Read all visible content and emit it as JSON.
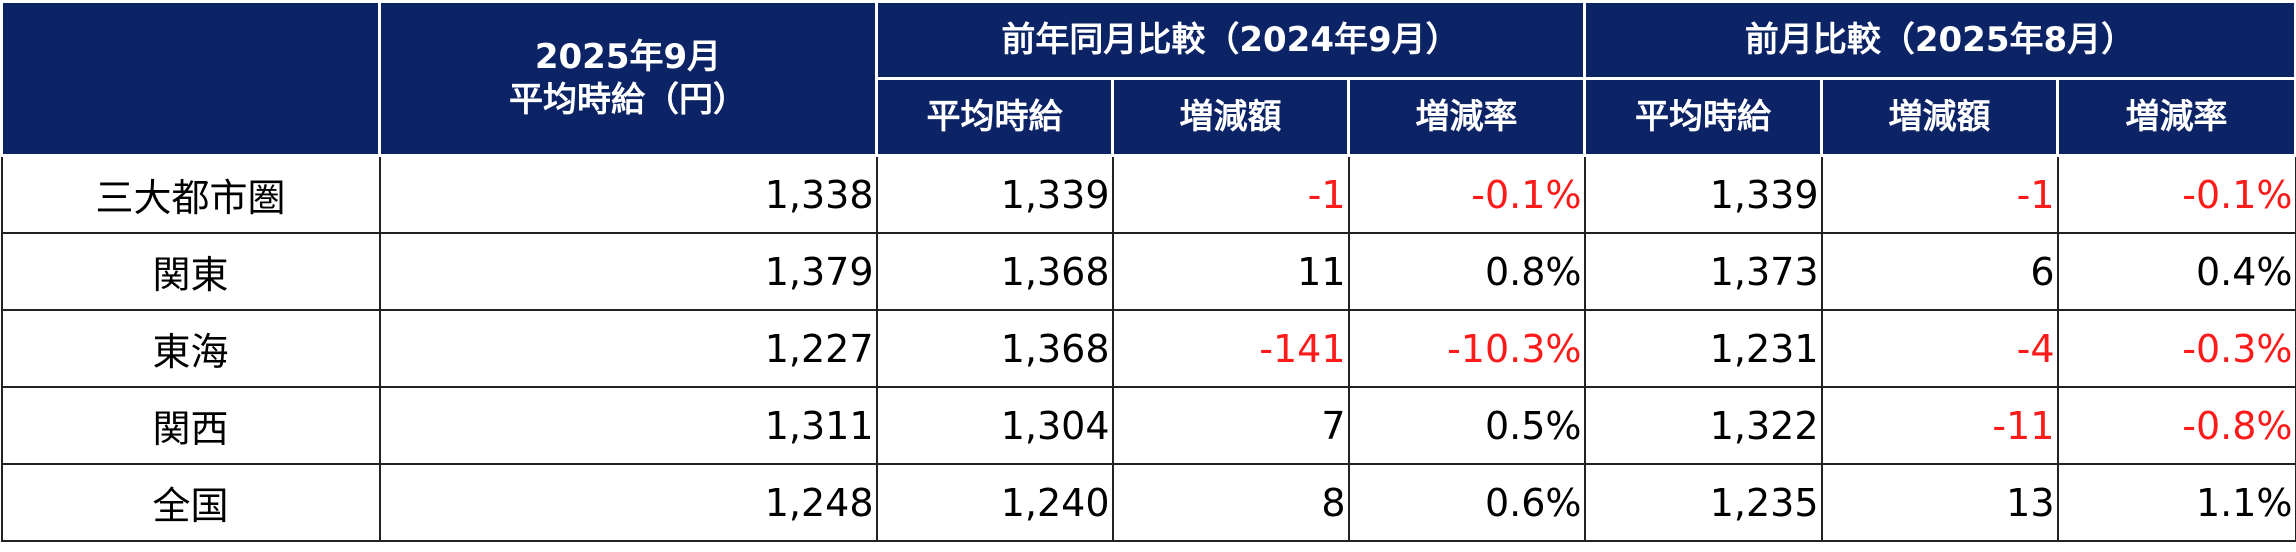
{
  "header": {
    "period": "2025年9月",
    "period_sub": "平均時給（円）",
    "yoy": "前年同月比較（2024年9月）",
    "mom": "前月比較（2025年8月）",
    "columns": [
      "平均時給",
      "増減額",
      "増減率",
      "平均時給",
      "増減額",
      "増減率"
    ]
  },
  "table": {
    "rows": [
      [
        "三大都市圏",
        "1,338",
        "1,339",
        "-1",
        "-0.1%",
        "1,339",
        "-1",
        "-0.1%"
      ],
      [
        "関東",
        "1,379",
        "1,368",
        "11",
        "0.8%",
        "1,373",
        "6",
        "0.4%"
      ],
      [
        "東海",
        "1,227",
        "1,368",
        "-141",
        "-10.3%",
        "1,231",
        "-4",
        "-0.3%"
      ],
      [
        "関西",
        "1,311",
        "1,304",
        "7",
        "0.5%",
        "1,322",
        "-11",
        "-0.8%"
      ],
      [
        "全国",
        "1,248",
        "1,240",
        "8",
        "0.6%",
        "1,235",
        "13",
        "1.1%"
      ]
    ]
  }
}
